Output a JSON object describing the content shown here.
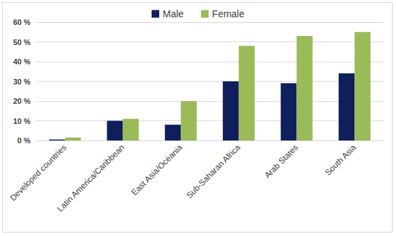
{
  "chart_data": {
    "type": "bar",
    "categories": [
      "Developed countries",
      "Latin America/Caribbean",
      "East Asia/Oceania",
      "Sub-Saharan Africa",
      "Arab States",
      "South Asia"
    ],
    "series": [
      {
        "name": "Male",
        "color": "#0e1f5b",
        "values": [
          0.5,
          10,
          8,
          30,
          29,
          34
        ]
      },
      {
        "name": "Female",
        "color": "#9bbb59",
        "values": [
          1.5,
          11,
          20,
          48,
          53,
          55
        ]
      }
    ],
    "ylim": [
      0,
      60
    ],
    "yticks": [
      {
        "value": 0,
        "label": "0 %"
      },
      {
        "value": 10,
        "label": "10 %"
      },
      {
        "value": 20,
        "label": "20 %"
      },
      {
        "value": 30,
        "label": "30 %"
      },
      {
        "value": 40,
        "label": "40 %"
      },
      {
        "value": 50,
        "label": "50 %"
      },
      {
        "value": 60,
        "label": "60 %"
      }
    ],
    "grid": true,
    "legend": "top"
  }
}
